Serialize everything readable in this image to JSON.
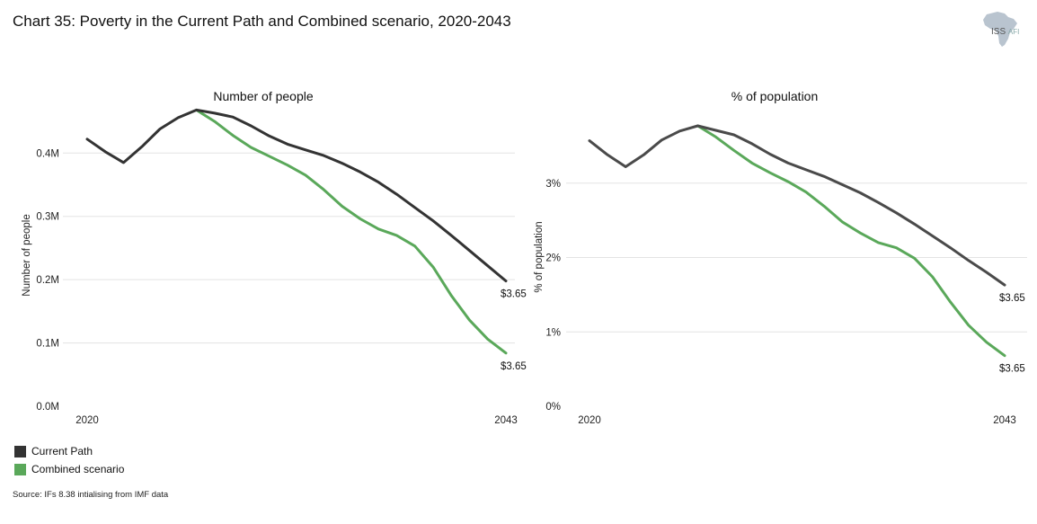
{
  "title": "Chart 35: Poverty in the Current Path and Combined scenario, 2020-2043",
  "logo": {
    "text": "ISS",
    "sub": "AFI"
  },
  "legend": [
    {
      "label": "Current Path",
      "color": "#333333"
    },
    {
      "label": "Combined scenario",
      "color": "#5aa85a"
    }
  ],
  "source": "Source: IFs 8.38 intialising from IMF data",
  "chart_data": [
    {
      "type": "line",
      "title": "Number of people",
      "ylabel": "Number of people",
      "xlabel": "",
      "ylim": [
        0,
        0.47
      ],
      "yticks": [
        0,
        0.1,
        0.2,
        0.3,
        0.4
      ],
      "ytick_labels": [
        "0.0M",
        "0.1M",
        "0.2M",
        "0.3M",
        "0.4M"
      ],
      "x_labels": [
        "2020",
        "2043"
      ],
      "x": [
        2020,
        2021,
        2022,
        2023,
        2024,
        2025,
        2026,
        2027,
        2028,
        2029,
        2030,
        2031,
        2032,
        2033,
        2034,
        2035,
        2036,
        2037,
        2038,
        2039,
        2040,
        2041,
        2042,
        2043
      ],
      "series": [
        {
          "name": "Current Path",
          "color": "#333333",
          "values": [
            0.422,
            0.402,
            0.385,
            0.41,
            0.438,
            0.456,
            0.468,
            0.463,
            0.457,
            0.443,
            0.427,
            0.414,
            0.405,
            0.396,
            0.384,
            0.37,
            0.354,
            0.335,
            0.314,
            0.293,
            0.27,
            0.246,
            0.222,
            0.198
          ]
        },
        {
          "name": "Combined scenario",
          "color": "#5aa85a",
          "values": [
            null,
            null,
            null,
            null,
            null,
            null,
            0.468,
            0.45,
            0.428,
            0.409,
            0.395,
            0.381,
            0.365,
            0.342,
            0.316,
            0.296,
            0.28,
            0.27,
            0.253,
            0.22,
            0.175,
            0.136,
            0.106,
            0.084
          ]
        }
      ],
      "annotations": [
        "$3.65",
        "$3.65"
      ]
    },
    {
      "type": "line",
      "title": "% of population",
      "ylabel": "% of population",
      "xlabel": "",
      "ylim": [
        0,
        4.0
      ],
      "yticks": [
        0,
        1,
        2,
        3
      ],
      "ytick_labels": [
        "0%",
        "1%",
        "2%",
        "3%"
      ],
      "x_labels": [
        "2020",
        "2043"
      ],
      "x": [
        2020,
        2021,
        2022,
        2023,
        2024,
        2025,
        2026,
        2027,
        2028,
        2029,
        2030,
        2031,
        2032,
        2033,
        2034,
        2035,
        2036,
        2037,
        2038,
        2039,
        2040,
        2041,
        2042,
        2043
      ],
      "series": [
        {
          "name": "Current Path",
          "color": "#4a4a4a",
          "values": [
            3.57,
            3.38,
            3.22,
            3.38,
            3.58,
            3.7,
            3.77,
            3.71,
            3.65,
            3.53,
            3.39,
            3.27,
            3.18,
            3.09,
            2.98,
            2.87,
            2.74,
            2.6,
            2.45,
            2.29,
            2.13,
            1.96,
            1.8,
            1.63
          ]
        },
        {
          "name": "Combined scenario",
          "color": "#5aa85a",
          "values": [
            null,
            null,
            null,
            null,
            null,
            null,
            3.77,
            3.62,
            3.44,
            3.27,
            3.14,
            3.02,
            2.88,
            2.69,
            2.48,
            2.33,
            2.2,
            2.13,
            1.99,
            1.74,
            1.4,
            1.09,
            0.86,
            0.68
          ]
        }
      ],
      "annotations": [
        "$3.65",
        "$3.65"
      ]
    }
  ]
}
